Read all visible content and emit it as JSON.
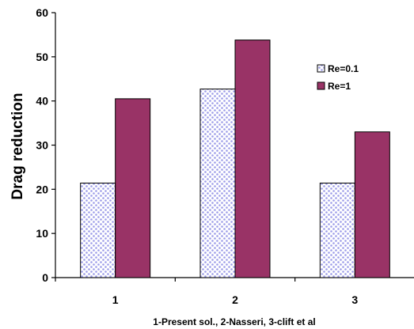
{
  "chart_data": {
    "type": "bar",
    "categories": [
      "1",
      "2",
      "3"
    ],
    "series": [
      {
        "name": "Re=0.1",
        "values": [
          21.4,
          42.7,
          21.4
        ],
        "color": "#ffffff",
        "pattern": "dotted",
        "dot_color": "#9c9ce8"
      },
      {
        "name": "Re=1",
        "values": [
          40.5,
          53.8,
          33.0
        ],
        "color": "#993366"
      }
    ],
    "xlabel": "1-Present sol., 2-Nasseri, 3-clift et al",
    "ylabel": "Drag reduction",
    "ylim": [
      0,
      60
    ],
    "yticks": [
      "0",
      "10",
      "20",
      "30",
      "40",
      "50",
      "60"
    ],
    "grid": false,
    "legend_position": "right"
  }
}
